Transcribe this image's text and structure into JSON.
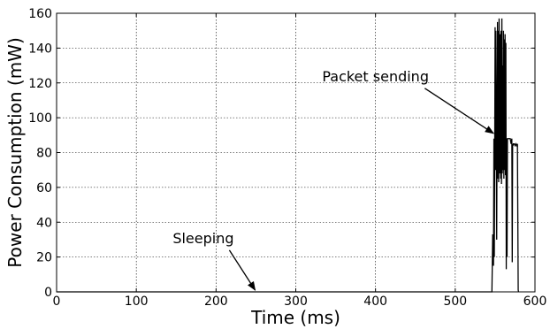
{
  "chart_data": {
    "type": "line",
    "title": "",
    "xlabel": "Time (ms)",
    "ylabel": "Power Consumption (mW)",
    "xlim": [
      0,
      600
    ],
    "ylim": [
      0,
      160
    ],
    "xticks": [
      0,
      100,
      200,
      300,
      400,
      500,
      600
    ],
    "yticks": [
      0,
      20,
      40,
      60,
      80,
      100,
      120,
      140,
      160
    ],
    "grid": true,
    "line_color": "#000000",
    "annotations": [
      {
        "text": "Packet sending",
        "text_pos": [
          400,
          121
        ],
        "arrow_to": [
          548,
          91
        ]
      },
      {
        "text": "Sleeping",
        "text_pos": [
          184,
          28
        ],
        "arrow_to": [
          249,
          1
        ]
      }
    ],
    "series": [
      {
        "x": [
          0,
          546,
          547,
          548,
          548.5,
          549,
          549.5,
          550,
          550.5,
          551,
          552,
          553,
          553.5,
          554,
          554.5,
          555,
          556,
          556.5,
          557,
          557.5,
          558,
          558.5,
          559,
          559.5,
          560,
          560.5,
          561,
          561.5,
          562,
          562.5,
          563,
          563.5,
          564,
          564.5,
          565,
          565.5,
          566,
          567,
          568,
          569,
          570,
          571,
          571.5,
          572,
          572.5,
          573,
          574,
          575,
          576,
          577,
          578,
          579,
          579.5
        ],
        "y": [
          0,
          0,
          33,
          15,
          88,
          20,
          80,
          152,
          70,
          150,
          30,
          155,
          65,
          150,
          63,
          157,
          68,
          148,
          65,
          150,
          62,
          157,
          68,
          130,
          70,
          150,
          65,
          145,
          70,
          148,
          67,
          143,
          13,
          88,
          20,
          88,
          88,
          88,
          88,
          88,
          85,
          88,
          17,
          85,
          84,
          85,
          85,
          84,
          85,
          84,
          85,
          1,
          0
        ]
      }
    ]
  }
}
